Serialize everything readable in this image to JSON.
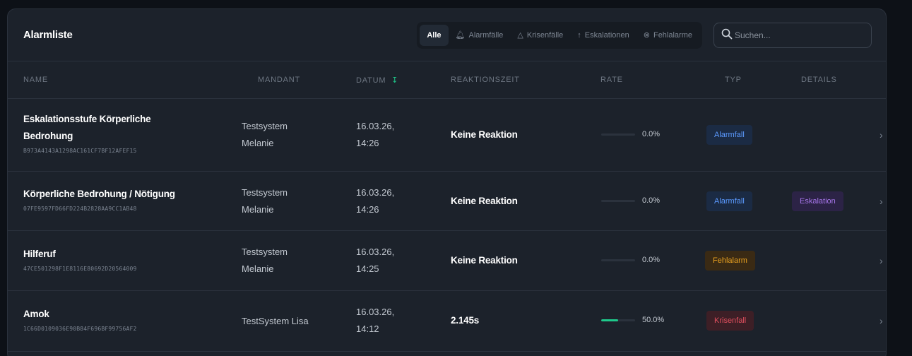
{
  "header": {
    "title": "Alarmliste",
    "filters": [
      {
        "label": "Alle",
        "icon": "",
        "active": true
      },
      {
        "label": "Alarmfälle",
        "icon": "bell-icon"
      },
      {
        "label": "Krisenfälle",
        "icon": "warning-triangle-icon"
      },
      {
        "label": "Eskalationen",
        "icon": "arrow-up-icon"
      },
      {
        "label": "Fehlalarme",
        "icon": "circle-x-icon"
      }
    ],
    "search_placeholder": "Suchen..."
  },
  "columns": {
    "name": "NAME",
    "mandant": "MANDANT",
    "datum": "DATUM",
    "reaktionszeit": "REAKTIONSZEIT",
    "rate": "RATE",
    "typ": "TYP",
    "details": "DETAILS"
  },
  "rows": [
    {
      "name_line1": "Eskalationsstufe Körperliche",
      "name_line2": "Bedrohung",
      "hash": "B973A4143A1298AC161CF7BF12AFEF15",
      "mandant_line1": "Testsystem",
      "mandant_line2": "Melanie",
      "date": "16.03.26,",
      "time": "14:26",
      "reaction": "Keine Reaktion",
      "rate": "0.0%",
      "rate_value": 0,
      "type": "Alarmfall",
      "details": ""
    },
    {
      "name_line1": "Körperliche Bedrohung / Nötigung",
      "name_line2": "",
      "hash": "07FE9597FD66FD224B2828AA9CC1AB48",
      "mandant_line1": "Testsystem",
      "mandant_line2": "Melanie",
      "date": "16.03.26,",
      "time": "14:26",
      "reaction": "Keine Reaktion",
      "rate": "0.0%",
      "rate_value": 0,
      "type": "Alarmfall",
      "details": "Eskalation"
    },
    {
      "name_line1": "Hilferuf",
      "name_line2": "",
      "hash": "47CE501298F1E8116E80692D20564009",
      "mandant_line1": "Testsystem",
      "mandant_line2": "Melanie",
      "date": "16.03.26,",
      "time": "14:25",
      "reaction": "Keine Reaktion",
      "rate": "0.0%",
      "rate_value": 0,
      "type": "Fehlalarm",
      "details": ""
    },
    {
      "name_line1": "Amok",
      "name_line2": "",
      "hash": "1C66D0109036E90B84F696BF99756AF2",
      "mandant_line1": "TestSystem Lisa",
      "mandant_line2": "",
      "date": "16.03.26,",
      "time": "14:12",
      "reaction": "2.145s",
      "rate": "50.0%",
      "rate_value": 50,
      "type": "Krisenfall",
      "details": ""
    }
  ],
  "colors": {
    "accent_green": "#1ec98b",
    "alarmfall": "#5b9aff",
    "fehlalarm": "#e8a020",
    "krisenfall": "#e04f5e",
    "eskalation": "#a776ea"
  }
}
